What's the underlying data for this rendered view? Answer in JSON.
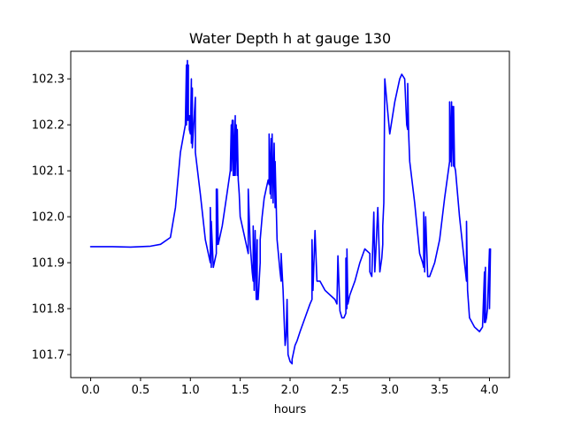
{
  "chart_data": {
    "type": "line",
    "title": "Water Depth h at gauge 130",
    "xlabel": "hours",
    "ylabel": "",
    "xlim": [
      -0.2,
      4.2
    ],
    "ylim": [
      101.65,
      102.36
    ],
    "xticks": [
      0.0,
      0.5,
      1.0,
      1.5,
      2.0,
      2.5,
      3.0,
      3.5,
      4.0
    ],
    "xtick_labels": [
      "0.0",
      "0.5",
      "1.0",
      "1.5",
      "2.0",
      "2.5",
      "3.0",
      "3.5",
      "4.0"
    ],
    "yticks": [
      101.7,
      101.8,
      101.9,
      102.0,
      102.1,
      102.2,
      102.3
    ],
    "ytick_labels": [
      "101.7",
      "101.8",
      "101.9",
      "102.0",
      "102.1",
      "102.2",
      "102.3"
    ],
    "grid": false,
    "legend": "none",
    "series": [
      {
        "color": "#0000ff",
        "x": [
          0.0,
          0.2,
          0.4,
          0.6,
          0.7,
          0.8,
          0.85,
          0.9,
          0.95,
          0.96,
          0.96,
          0.97,
          0.97,
          0.98,
          0.98,
          0.99,
          0.99,
          1.0,
          1.01,
          1.01,
          1.02,
          1.02,
          1.05,
          1.05,
          1.1,
          1.15,
          1.2,
          1.2,
          1.21,
          1.21,
          1.23,
          1.26,
          1.26,
          1.27,
          1.27,
          1.28,
          1.32,
          1.36,
          1.4,
          1.41,
          1.41,
          1.42,
          1.43,
          1.43,
          1.44,
          1.45,
          1.45,
          1.46,
          1.47,
          1.47,
          1.48,
          1.49,
          1.5,
          1.55,
          1.58,
          1.58,
          1.6,
          1.62,
          1.63,
          1.63,
          1.64,
          1.65,
          1.66,
          1.67,
          1.67,
          1.68,
          1.7,
          1.7,
          1.72,
          1.74,
          1.76,
          1.78,
          1.79,
          1.79,
          1.8,
          1.81,
          1.81,
          1.82,
          1.83,
          1.84,
          1.85,
          1.85,
          1.87,
          1.9,
          1.91,
          1.91,
          1.93,
          1.94,
          1.95,
          1.96,
          1.97,
          1.98,
          2.0,
          2.02,
          2.02,
          2.03,
          2.04,
          2.05,
          2.07,
          2.1,
          2.15,
          2.2,
          2.22,
          2.22,
          2.23,
          2.25,
          2.27,
          2.3,
          2.35,
          2.4,
          2.45,
          2.47,
          2.48,
          2.5,
          2.52,
          2.54,
          2.56,
          2.56,
          2.57,
          2.57,
          2.58,
          2.6,
          2.65,
          2.7,
          2.75,
          2.8,
          2.8,
          2.82,
          2.84,
          2.85,
          2.86,
          2.88,
          2.9,
          2.92,
          2.93,
          2.93,
          2.94,
          2.95,
          3.0,
          3.05,
          3.1,
          3.12,
          3.15,
          3.17,
          3.18,
          3.18,
          3.19,
          3.2,
          3.25,
          3.3,
          3.33,
          3.34,
          3.34,
          3.35,
          3.36,
          3.38,
          3.4,
          3.45,
          3.5,
          3.55,
          3.6,
          3.6,
          3.61,
          3.62,
          3.62,
          3.63,
          3.64,
          3.64,
          3.65,
          3.66,
          3.7,
          3.74,
          3.77,
          3.77,
          3.78,
          3.79,
          3.8,
          3.85,
          3.9,
          3.93,
          3.95,
          3.95,
          3.96,
          3.96,
          3.97,
          3.98,
          4.0,
          4.0,
          4.01
        ],
        "y": [
          101.935,
          101.935,
          101.934,
          101.936,
          101.94,
          101.955,
          102.02,
          102.14,
          102.2,
          102.33,
          102.2,
          102.34,
          102.21,
          102.33,
          102.21,
          102.22,
          102.19,
          102.18,
          102.3,
          102.16,
          102.28,
          102.15,
          102.26,
          102.14,
          102.05,
          101.95,
          101.9,
          102.02,
          101.89,
          101.99,
          101.89,
          101.92,
          102.06,
          101.94,
          102.06,
          101.94,
          101.98,
          102.04,
          102.1,
          102.2,
          102.1,
          102.21,
          102.09,
          102.21,
          102.09,
          102.22,
          102.09,
          102.2,
          102.09,
          102.19,
          102.08,
          102.05,
          102.0,
          101.95,
          101.92,
          102.06,
          101.94,
          101.88,
          101.86,
          101.98,
          101.84,
          101.97,
          101.82,
          101.95,
          101.82,
          101.82,
          101.9,
          101.95,
          102.0,
          102.04,
          102.06,
          102.08,
          102.07,
          102.18,
          102.05,
          102.17,
          102.04,
          102.18,
          102.03,
          102.16,
          102.02,
          102.12,
          101.95,
          101.88,
          101.86,
          101.92,
          101.84,
          101.78,
          101.72,
          101.74,
          101.82,
          101.7,
          101.685,
          101.68,
          101.69,
          101.7,
          101.71,
          101.72,
          101.73,
          101.75,
          101.78,
          101.81,
          101.82,
          101.95,
          101.84,
          101.97,
          101.86,
          101.86,
          101.84,
          101.83,
          101.82,
          101.81,
          101.915,
          101.795,
          101.78,
          101.78,
          101.79,
          101.91,
          101.8,
          101.93,
          101.81,
          101.83,
          101.86,
          101.9,
          101.93,
          101.92,
          101.88,
          101.87,
          102.01,
          101.88,
          101.92,
          102.02,
          101.88,
          101.91,
          101.94,
          101.98,
          102.03,
          102.3,
          102.18,
          102.25,
          102.3,
          102.31,
          102.3,
          102.2,
          102.19,
          102.29,
          102.18,
          102.12,
          102.03,
          101.92,
          101.9,
          101.89,
          102.01,
          101.88,
          102.0,
          101.87,
          101.87,
          101.9,
          101.95,
          102.04,
          102.12,
          102.25,
          102.12,
          102.25,
          102.11,
          102.24,
          102.11,
          102.24,
          102.11,
          102.1,
          102.0,
          101.92,
          101.86,
          101.99,
          101.84,
          101.81,
          101.78,
          101.76,
          101.75,
          101.76,
          101.88,
          101.77,
          101.89,
          101.77,
          101.78,
          101.8,
          101.93,
          101.8,
          101.93
        ]
      }
    ]
  }
}
